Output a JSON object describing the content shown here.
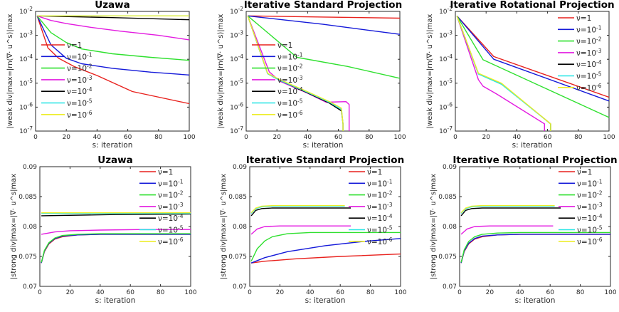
{
  "colors": {
    "nu1": "#e8211d",
    "nu1e-1": "#1419d9",
    "nu1e-2": "#2fe02f",
    "nu1e-3": "#e31ae0",
    "nu1e-4": "#000000",
    "nu1e-5": "#27e6e6",
    "nu1e-6": "#eded2a"
  },
  "legend_labels": [
    {
      "base": "ν=1",
      "exp": ""
    },
    {
      "base": "ν=10",
      "exp": "-1"
    },
    {
      "base": "ν=10",
      "exp": "-2"
    },
    {
      "base": "ν=10",
      "exp": "-3"
    },
    {
      "base": "ν=10",
      "exp": "-4"
    },
    {
      "base": "ν=10",
      "exp": "-5"
    },
    {
      "base": "ν=10",
      "exp": "-6"
    }
  ],
  "chart_data": [
    {
      "type": "line",
      "title": "Uzawa",
      "xlabel": "s: iteration",
      "ylabel": "|weak div|max=|rn(∇· u^s)|max",
      "yscale": "log",
      "xlim": [
        0,
        100
      ],
      "ylim": [
        1e-07,
        0.01
      ],
      "xticks": [
        "0",
        "20",
        "40",
        "60",
        "80",
        "100"
      ],
      "yticks": [
        {
          "b": "10",
          "e": "-7"
        },
        {
          "b": "10",
          "e": "-6"
        },
        {
          "b": "10",
          "e": "-5"
        },
        {
          "b": "10",
          "e": "-4"
        },
        {
          "b": "10",
          "e": "-3"
        },
        {
          "b": "10",
          "e": "-2"
        }
      ],
      "legend_position": "left",
      "series": [
        {
          "name": "ν=1",
          "x": [
            1,
            8,
            15,
            25,
            40,
            63,
            100
          ],
          "y": [
            0.0065,
            0.0003,
            0.00011,
            5e-05,
            2.1e-05,
            4.5e-06,
            1.4e-06
          ]
        },
        {
          "name": "ν=10^-1",
          "x": [
            1,
            10,
            20,
            30,
            50,
            75,
            100
          ],
          "y": [
            0.0065,
            0.0004,
            0.00011,
            6.5e-05,
            4.2e-05,
            2.9e-05,
            2.2e-05
          ]
        },
        {
          "name": "ν=10^-2",
          "x": [
            1,
            10,
            20,
            30,
            50,
            75,
            100
          ],
          "y": [
            0.0065,
            0.0013,
            0.0005,
            0.00027,
            0.00017,
            0.00012,
            9e-05
          ]
        },
        {
          "name": "ν=10^-3",
          "x": [
            1,
            10,
            20,
            35,
            55,
            80,
            100
          ],
          "y": [
            0.0065,
            0.0042,
            0.0031,
            0.0022,
            0.0015,
            0.001,
            0.00065
          ]
        },
        {
          "name": "ν=10^-4",
          "x": [
            1,
            50,
            100
          ],
          "y": [
            0.0065,
            0.0055,
            0.0045
          ]
        },
        {
          "name": "ν=10^-5",
          "x": [
            1,
            100
          ],
          "y": [
            0.0065,
            0.0065
          ]
        },
        {
          "name": "ν=10^-6",
          "x": [
            1,
            100
          ],
          "y": [
            0.0065,
            0.0065
          ]
        }
      ]
    },
    {
      "type": "line",
      "title": "Iterative Standard Projection",
      "xlabel": "s: iteration",
      "ylabel": "|weak div|max=|rn(∇· u^s)|max",
      "yscale": "log",
      "xlim": [
        0,
        100
      ],
      "ylim": [
        1e-07,
        0.01
      ],
      "xticks": [
        "0",
        "20",
        "40",
        "60",
        "80",
        "100"
      ],
      "yticks": [
        {
          "b": "10",
          "e": "-7"
        },
        {
          "b": "10",
          "e": "-6"
        },
        {
          "b": "10",
          "e": "-5"
        },
        {
          "b": "10",
          "e": "-4"
        },
        {
          "b": "10",
          "e": "-3"
        },
        {
          "b": "10",
          "e": "-2"
        }
      ],
      "legend_position": "left",
      "series": [
        {
          "name": "ν=1",
          "x": [
            1,
            50,
            100
          ],
          "y": [
            0.0065,
            0.0058,
            0.0052
          ]
        },
        {
          "name": "ν=10^-1",
          "x": [
            1,
            50,
            100
          ],
          "y": [
            0.0065,
            0.0029,
            0.0011
          ]
        },
        {
          "name": "ν=10^-2",
          "x": [
            1,
            33,
            66,
            100
          ],
          "y": [
            0.0065,
            0.00012,
            5e-05,
            1.6e-05
          ]
        },
        {
          "name": "ν=10^-3",
          "x": [
            1,
            15,
            22,
            40,
            52,
            65,
            67,
            67
          ],
          "y": [
            0.0065,
            3e-05,
            1.2e-05,
            3.8e-06,
            1.6e-06,
            1.7e-06,
            1.3e-06,
            1e-07
          ]
        },
        {
          "name": "ν=10^-4",
          "x": [
            1,
            14,
            22,
            38,
            54,
            62,
            63,
            63
          ],
          "y": [
            0.0065,
            2.5e-05,
            1.3e-05,
            4.5e-06,
            1.5e-06,
            7e-07,
            2e-07,
            1e-07
          ]
        },
        {
          "name": "ν=10^-5",
          "x": [
            1,
            14,
            22,
            38,
            55,
            62,
            63,
            63
          ],
          "y": [
            0.0065,
            2.5e-05,
            1.3e-05,
            4.7e-06,
            1.5e-06,
            8e-07,
            2e-07,
            1e-07
          ]
        },
        {
          "name": "ν=10^-6",
          "x": [
            1,
            14,
            22,
            38,
            55,
            62,
            63,
            63
          ],
          "y": [
            0.0065,
            2.6e-05,
            1.4e-05,
            5e-06,
            1.6e-06,
            9e-07,
            2e-07,
            1e-07
          ]
        }
      ]
    },
    {
      "type": "line",
      "title": "Iterative Rotational Projection",
      "xlabel": "s: iteration",
      "ylabel": "|weak div|max=|rn(∇· u^s)|max",
      "yscale": "log",
      "xlim": [
        0,
        100
      ],
      "ylim": [
        1e-07,
        0.01
      ],
      "xticks": [
        "0",
        "20",
        "40",
        "60",
        "80",
        "100"
      ],
      "yticks": [
        {
          "b": "10",
          "e": "-7"
        },
        {
          "b": "10",
          "e": "-6"
        },
        {
          "b": "10",
          "e": "-5"
        },
        {
          "b": "10",
          "e": "-4"
        },
        {
          "b": "10",
          "e": "-3"
        },
        {
          "b": "10",
          "e": "-2"
        }
      ],
      "legend_position": "top-right",
      "series": [
        {
          "name": "ν=1",
          "x": [
            1,
            25,
            100
          ],
          "y": [
            0.0065,
            0.00013,
            2.6e-06
          ]
        },
        {
          "name": "ν=10^-1",
          "x": [
            1,
            25,
            100
          ],
          "y": [
            0.0065,
            0.0001,
            1.8e-06
          ]
        },
        {
          "name": "ν=10^-2",
          "x": [
            1,
            18,
            100
          ],
          "y": [
            0.0065,
            9.5e-05,
            3.7e-07
          ]
        },
        {
          "name": "ν=10^-3",
          "x": [
            1,
            15,
            18,
            27,
            58,
            58
          ],
          "y": [
            0.0065,
            1.4e-05,
            7.5e-06,
            3.5e-06,
            2e-07,
            1e-07
          ]
        },
        {
          "name": "ν=10^-4",
          "x": [
            1,
            15,
            30,
            62,
            62
          ],
          "y": [
            0.0065,
            2.5e-05,
            9.5e-06,
            2e-07,
            1e-07
          ]
        },
        {
          "name": "ν=10^-5",
          "x": [
            1,
            15,
            30,
            62,
            62
          ],
          "y": [
            0.0065,
            2.4e-05,
            9e-06,
            2e-07,
            1e-07
          ]
        },
        {
          "name": "ν=10^-6",
          "x": [
            1,
            15,
            30,
            62,
            62
          ],
          "y": [
            0.0065,
            2.6e-05,
            1e-05,
            2e-07,
            1e-07
          ]
        }
      ]
    },
    {
      "type": "line",
      "title": "Uzawa",
      "xlabel": "s: iteration",
      "ylabel": "|strong div|max=|∇· u^s|max",
      "yscale": "linear",
      "xlim": [
        0,
        100
      ],
      "ylim": [
        0.07,
        0.09
      ],
      "xticks": [
        "0",
        "20",
        "40",
        "60",
        "80",
        "100"
      ],
      "yticks": [
        "0.07",
        "0.075",
        "0.08",
        "0.085",
        "0.09"
      ],
      "legend_position": "top-right",
      "series": [
        {
          "name": "ν=1",
          "x": [
            1,
            3,
            6,
            10,
            15,
            25,
            40,
            100
          ],
          "y": [
            0.0739,
            0.0758,
            0.0771,
            0.0779,
            0.0783,
            0.0786,
            0.0787,
            0.0787
          ]
        },
        {
          "name": "ν=10^-1",
          "x": [
            1,
            3,
            6,
            10,
            15,
            25,
            40,
            100
          ],
          "y": [
            0.0739,
            0.0759,
            0.0772,
            0.078,
            0.0784,
            0.0786,
            0.0787,
            0.0787
          ]
        },
        {
          "name": "ν=10^-2",
          "x": [
            1,
            3,
            6,
            10,
            15,
            25,
            40,
            100
          ],
          "y": [
            0.074,
            0.076,
            0.0773,
            0.0781,
            0.0785,
            0.0787,
            0.0788,
            0.0788
          ]
        },
        {
          "name": "ν=10^-3",
          "x": [
            1,
            10,
            20,
            40,
            70,
            100
          ],
          "y": [
            0.0787,
            0.0791,
            0.0793,
            0.0794,
            0.0795,
            0.0795
          ]
        },
        {
          "name": "ν=10^-4",
          "x": [
            1,
            50,
            100
          ],
          "y": [
            0.0818,
            0.082,
            0.0821
          ]
        },
        {
          "name": "ν=10^-5",
          "x": [
            1,
            50,
            100
          ],
          "y": [
            0.0822,
            0.0822,
            0.0822
          ]
        },
        {
          "name": "ν=10^-6",
          "x": [
            1,
            50,
            100
          ],
          "y": [
            0.0823,
            0.0823,
            0.0823
          ]
        }
      ]
    },
    {
      "type": "line",
      "title": "Iterative Standard Projection",
      "xlabel": "s: iteration",
      "ylabel": "|strong div|max=|∇· u^s|max",
      "yscale": "linear",
      "xlim": [
        0,
        100
      ],
      "ylim": [
        0.07,
        0.09
      ],
      "xticks": [
        "0",
        "20",
        "40",
        "60",
        "80",
        "100"
      ],
      "yticks": [
        "0.07",
        "0.075",
        "0.08",
        "0.085",
        "0.09"
      ],
      "legend_position": "top-right",
      "series": [
        {
          "name": "ν=1",
          "x": [
            1,
            10,
            30,
            60,
            100
          ],
          "y": [
            0.0739,
            0.0742,
            0.0746,
            0.075,
            0.0754
          ]
        },
        {
          "name": "ν=10^-1",
          "x": [
            1,
            10,
            25,
            50,
            75,
            100
          ],
          "y": [
            0.0739,
            0.0748,
            0.0758,
            0.0768,
            0.0775,
            0.078
          ]
        },
        {
          "name": "ν=10^-2",
          "x": [
            1,
            5,
            10,
            15,
            25,
            40,
            100
          ],
          "y": [
            0.0742,
            0.0763,
            0.0776,
            0.0783,
            0.0788,
            0.079,
            0.079
          ]
        },
        {
          "name": "ν=10^-3",
          "x": [
            1,
            5,
            10,
            20,
            67
          ],
          "y": [
            0.0787,
            0.0796,
            0.08,
            0.0801,
            0.0801
          ]
        },
        {
          "name": "ν=10^-4",
          "x": [
            1,
            4,
            8,
            15,
            67
          ],
          "y": [
            0.0818,
            0.0827,
            0.083,
            0.0831,
            0.0831
          ]
        },
        {
          "name": "ν=10^-5",
          "x": [
            1,
            4,
            8,
            15,
            63
          ],
          "y": [
            0.0822,
            0.083,
            0.0833,
            0.0834,
            0.0834
          ]
        },
        {
          "name": "ν=10^-6",
          "x": [
            1,
            4,
            8,
            15,
            63
          ],
          "y": [
            0.0823,
            0.0831,
            0.0834,
            0.0835,
            0.0835
          ]
        }
      ]
    },
    {
      "type": "line",
      "title": "Iterative Rotational Projection",
      "xlabel": "s: iteration",
      "ylabel": "|strong div|max=|∇· u^s|max",
      "yscale": "linear",
      "xlim": [
        0,
        100
      ],
      "ylim": [
        0.07,
        0.09
      ],
      "xticks": [
        "0",
        "20",
        "40",
        "60",
        "80",
        "100"
      ],
      "yticks": [
        "0.07",
        "0.075",
        "0.08",
        "0.085",
        "0.09"
      ],
      "legend_position": "top-right",
      "series": [
        {
          "name": "ν=1",
          "x": [
            1,
            3,
            6,
            10,
            15,
            25,
            40,
            100
          ],
          "y": [
            0.0739,
            0.0758,
            0.0771,
            0.0779,
            0.0783,
            0.0786,
            0.0787,
            0.0787
          ]
        },
        {
          "name": "ν=10^-1",
          "x": [
            1,
            3,
            6,
            10,
            15,
            25,
            40,
            100
          ],
          "y": [
            0.0739,
            0.0759,
            0.0772,
            0.078,
            0.0784,
            0.0786,
            0.0787,
            0.0787
          ]
        },
        {
          "name": "ν=10^-2",
          "x": [
            1,
            3,
            6,
            10,
            15,
            25,
            40,
            100
          ],
          "y": [
            0.074,
            0.0761,
            0.0775,
            0.0783,
            0.0787,
            0.0789,
            0.079,
            0.079
          ]
        },
        {
          "name": "ν=10^-3",
          "x": [
            1,
            5,
            10,
            20,
            62
          ],
          "y": [
            0.0787,
            0.0796,
            0.08,
            0.0801,
            0.0801
          ]
        },
        {
          "name": "ν=10^-4",
          "x": [
            1,
            4,
            8,
            15,
            67
          ],
          "y": [
            0.0818,
            0.0827,
            0.083,
            0.0831,
            0.0831
          ]
        },
        {
          "name": "ν=10^-5",
          "x": [
            1,
            4,
            8,
            15,
            63
          ],
          "y": [
            0.0822,
            0.083,
            0.0833,
            0.0834,
            0.0834
          ]
        },
        {
          "name": "ν=10^-6",
          "x": [
            1,
            4,
            8,
            15,
            63
          ],
          "y": [
            0.0823,
            0.0831,
            0.0834,
            0.0835,
            0.0835
          ]
        }
      ]
    }
  ]
}
